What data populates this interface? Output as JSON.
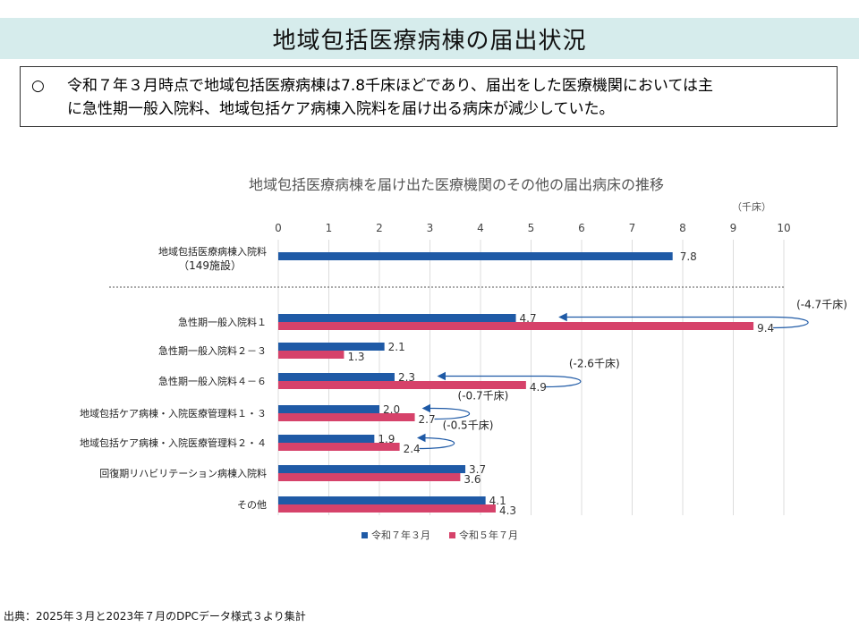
{
  "header": {
    "title": "地域包括医療病棟の届出状況"
  },
  "summary": {
    "bullet": "○",
    "line1": "令和７年３月時点で地域包括医療病棟は7.8千床ほどであり、届出をした医療機関においては主",
    "line2": "に急性期一般入院料、地域包括ケア病棟入院料を届け出る病床が減少していた。"
  },
  "chart_data": {
    "type": "bar",
    "orientation": "horizontal",
    "title": "地域包括医療病棟を届け出た医療機関のその他の届出病床の推移",
    "unit": "（千床）",
    "xlim": [
      0,
      10
    ],
    "ticks": [
      "0",
      "1",
      "2",
      "3",
      "4",
      "5",
      "6",
      "7",
      "8",
      "9",
      "10"
    ],
    "top_row": {
      "label_line1": "地域包括医療病棟入院料",
      "label_line2": "（149施設）",
      "value": 7.8,
      "value_label": "7.8",
      "color": "#1f5aa6"
    },
    "categories": [
      "急性期一般入院料１",
      "急性期一般入院料２－３",
      "急性期一般入院料４－６",
      "地域包括ケア病棟・入院医療管理料１・３",
      "地域包括ケア病棟・入院医療管理料２・４",
      "回復期リハビリテーション病棟入院料",
      "その他"
    ],
    "series": [
      {
        "name": "令和７年３月",
        "color": "#1f5aa6",
        "values": [
          4.7,
          2.1,
          2.3,
          2.0,
          1.9,
          3.7,
          4.1
        ],
        "labels": [
          "4.7",
          "2.1",
          "2.3",
          "2.0",
          "1.9",
          "3.7",
          "4.1"
        ]
      },
      {
        "name": "令和５年７月",
        "color": "#d6426a",
        "values": [
          9.4,
          1.3,
          4.9,
          2.7,
          2.4,
          3.6,
          4.3
        ],
        "labels": [
          "9.4",
          "1.3",
          "4.9",
          "2.7",
          "2.4",
          "3.6",
          "4.3"
        ]
      }
    ],
    "annotations": [
      {
        "category_index": 0,
        "text": "(-4.7千床)"
      },
      {
        "category_index": 2,
        "text": "(-2.6千床)"
      },
      {
        "category_index": 3,
        "text": "(-0.7千床)"
      },
      {
        "category_index": 4,
        "text": "(-0.5千床)"
      }
    ],
    "grid": true,
    "legend_position": "bottom"
  },
  "footer": {
    "source": "出典：2025年３月と2023年７月のDPCデータ様式３より集計"
  }
}
